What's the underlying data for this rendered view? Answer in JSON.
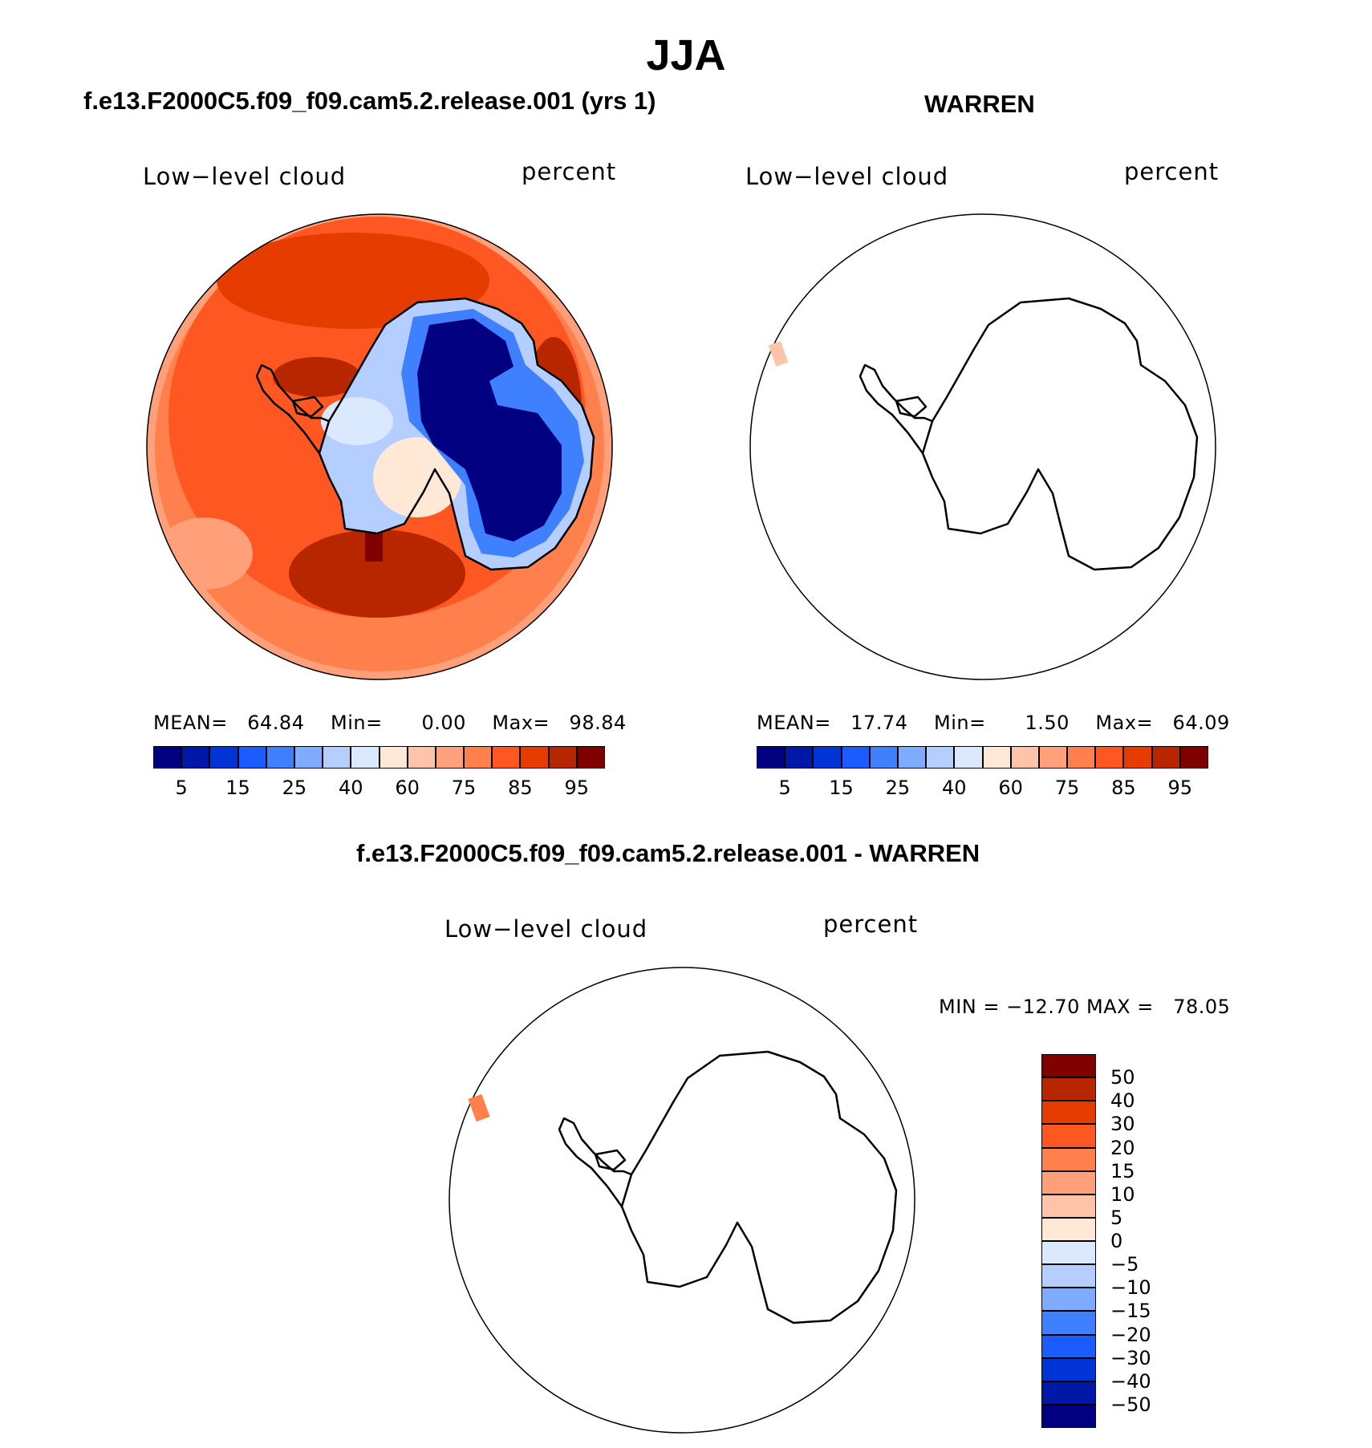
{
  "title": "JJA",
  "panels": [
    {
      "id": "model",
      "title": "f.e13.F2000C5.f09_f09.cam5.2.release.001 (yrs 1)",
      "left_label": "Low−level cloud",
      "right_label": "percent",
      "stats": {
        "mean_label": "MEAN=",
        "mean": "64.84",
        "min_label": "Min=",
        "min": "0.00",
        "max_label": "Max=",
        "max": "98.84"
      },
      "colorbar": {
        "colors": [
          "#000080",
          "#0018a8",
          "#0034d6",
          "#1a5cff",
          "#3e80ff",
          "#80acff",
          "#b4cfff",
          "#dbe9ff",
          "#ffe8d6",
          "#ffc4a8",
          "#ffa07a",
          "#ff7f4d",
          "#ff5722",
          "#e63c00",
          "#b82600",
          "#800000"
        ],
        "ticks": [
          "5",
          "15",
          "25",
          "40",
          "60",
          "75",
          "85",
          "95"
        ]
      }
    },
    {
      "id": "obs",
      "title": "WARREN",
      "left_label": "Low−level cloud",
      "right_label": "percent",
      "stats": {
        "mean_label": "MEAN=",
        "mean": "17.74",
        "min_label": "Min=",
        "min": "1.50",
        "max_label": "Max=",
        "max": "64.09"
      },
      "colorbar": {
        "colors": [
          "#000080",
          "#0018a8",
          "#0034d6",
          "#1a5cff",
          "#3e80ff",
          "#80acff",
          "#b4cfff",
          "#dbe9ff",
          "#ffe8d6",
          "#ffc4a8",
          "#ffa07a",
          "#ff7f4d",
          "#ff5722",
          "#e63c00",
          "#b82600",
          "#800000"
        ],
        "ticks": [
          "5",
          "15",
          "25",
          "40",
          "60",
          "75",
          "85",
          "95"
        ]
      }
    },
    {
      "id": "diff",
      "title": "f.e13.F2000C5.f09_f09.cam5.2.release.001 - WARREN",
      "left_label": "Low−level cloud",
      "right_label": "percent",
      "stats_text": "MIN = −12.70 MAX =   78.05",
      "colorbar": {
        "colors": [
          "#800000",
          "#b82600",
          "#e63c00",
          "#ff5722",
          "#ff7f4d",
          "#ffa07a",
          "#ffc4a8",
          "#ffe8d6",
          "#dbe9ff",
          "#b4cfff",
          "#80acff",
          "#3e80ff",
          "#1a5cff",
          "#0034d6",
          "#0018a8",
          "#000080"
        ],
        "ticks": [
          "50",
          "40",
          "30",
          "20",
          "15",
          "10",
          "5",
          "0",
          "−5",
          "−10",
          "−15",
          "−20",
          "−30",
          "−40",
          "−50"
        ]
      }
    }
  ]
}
